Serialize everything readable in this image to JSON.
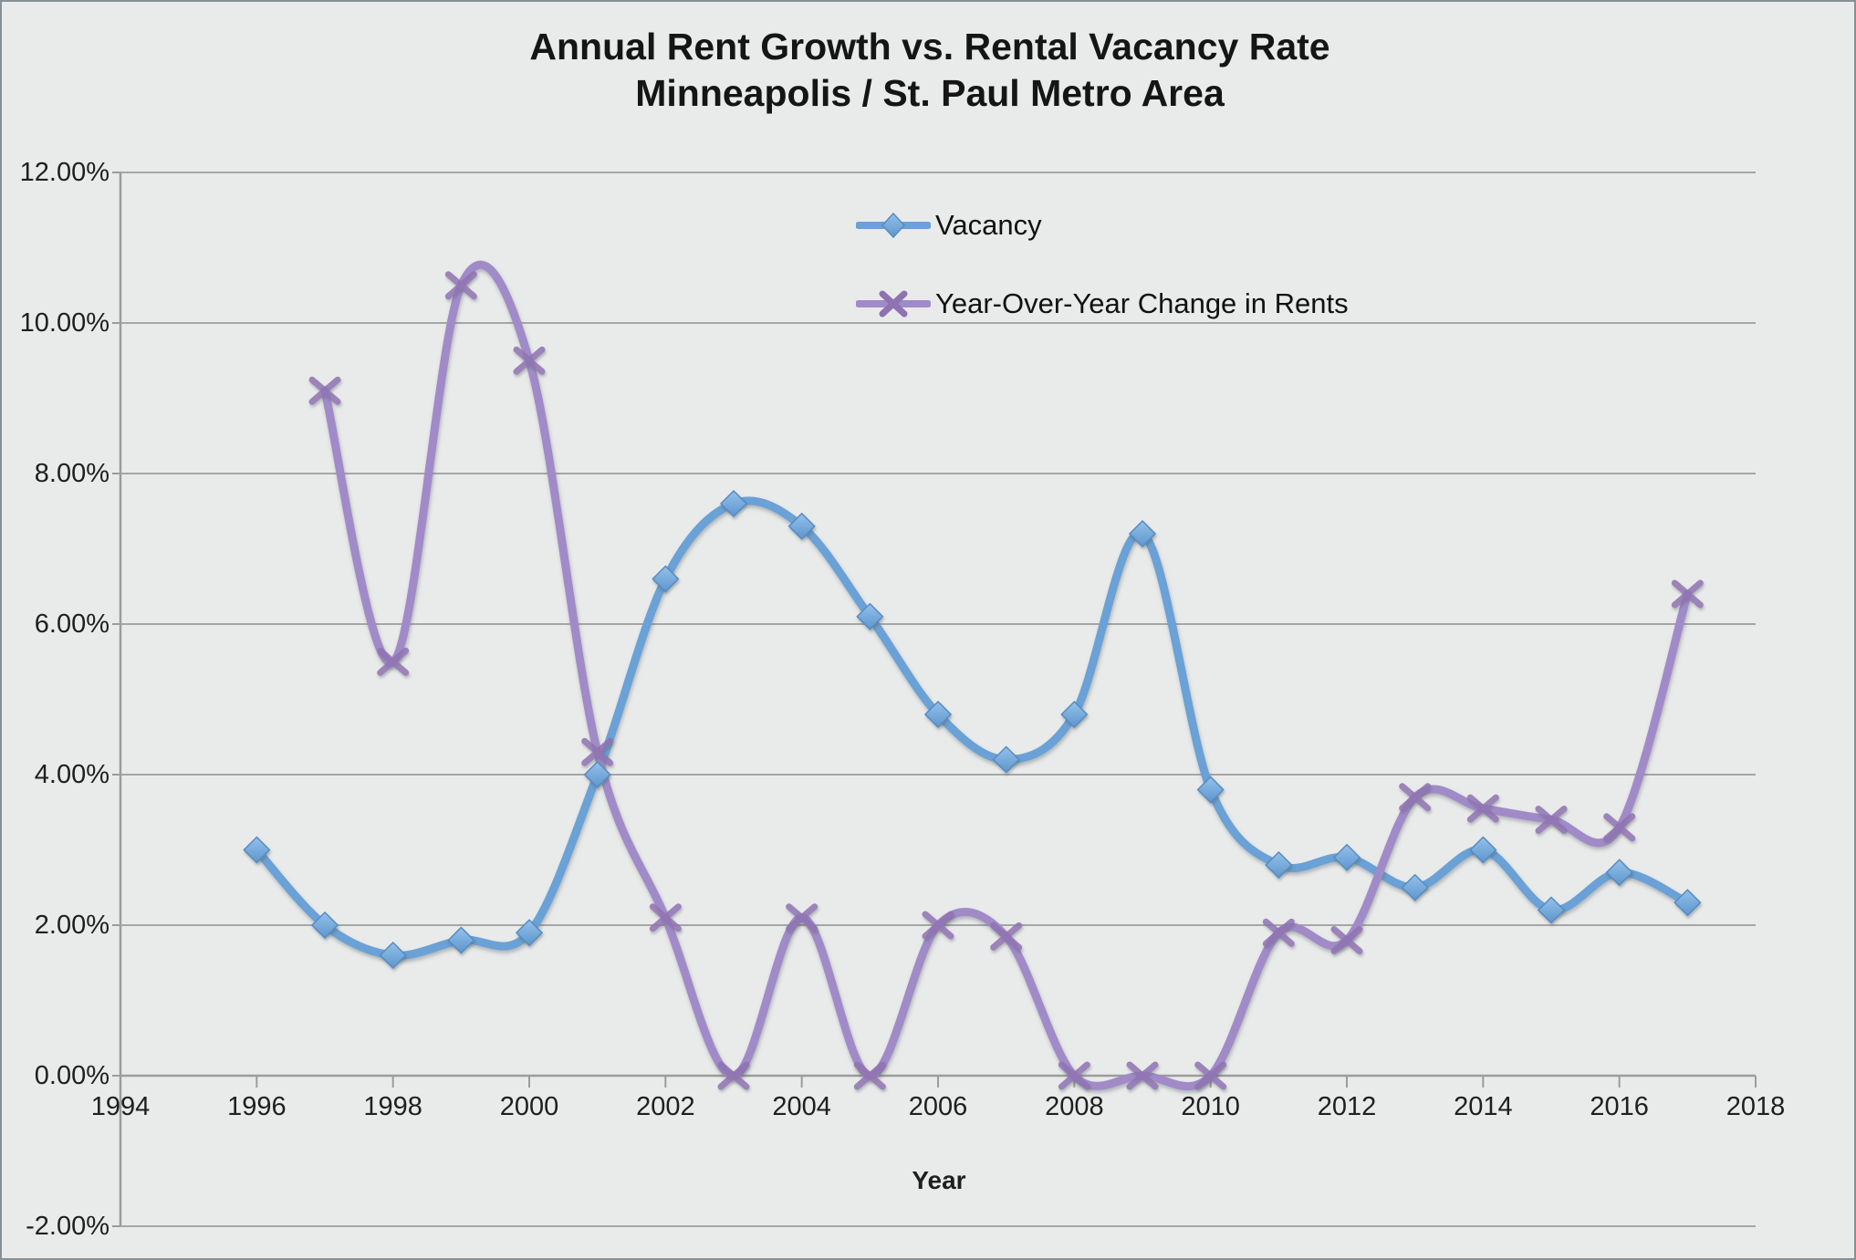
{
  "page": {
    "background": "#e9ebeb",
    "border_color": "#879095",
    "gridline_color": "#a6a6a6",
    "text_color": "#1f1f1f"
  },
  "chart_data": {
    "type": "line",
    "title_line1": "Annual Rent Growth vs. Rental Vacancy Rate",
    "title_line2": "Minneapolis / St. Paul Metro Area",
    "xlabel": "Year",
    "ylabel": "",
    "xlim": [
      1994,
      2018
    ],
    "ylim": [
      -2,
      12
    ],
    "grid": true,
    "legend_position": "top-center-inside",
    "x_ticks": [
      1994,
      1996,
      1998,
      2000,
      2002,
      2004,
      2006,
      2008,
      2010,
      2012,
      2014,
      2016,
      2018
    ],
    "y_ticks": [
      {
        "value": 12,
        "label": "12.00%"
      },
      {
        "value": 10,
        "label": "10.00%"
      },
      {
        "value": 8,
        "label": "8.00%"
      },
      {
        "value": 6,
        "label": "6.00%"
      },
      {
        "value": 4,
        "label": "4.00%"
      },
      {
        "value": 2,
        "label": "2.00%"
      },
      {
        "value": 0,
        "label": "0.00%"
      },
      {
        "value": -2,
        "label": "-2.00%"
      }
    ],
    "series": [
      {
        "name": "Vacancy",
        "color": "#6ba1d6",
        "marker": "diamond",
        "marker_color": "#77ade0",
        "smooth": true,
        "x": [
          1996,
          1997,
          1998,
          1999,
          2000,
          2001,
          2002,
          2003,
          2004,
          2005,
          2006,
          2007,
          2008,
          2009,
          2010,
          2011,
          2012,
          2013,
          2014,
          2015,
          2016,
          2017
        ],
        "values": [
          3.0,
          2.0,
          1.6,
          1.8,
          1.9,
          4.0,
          6.6,
          7.6,
          7.3,
          6.1,
          4.8,
          4.2,
          4.8,
          7.2,
          3.8,
          2.8,
          2.9,
          2.5,
          3.0,
          2.2,
          2.7,
          2.3
        ]
      },
      {
        "name": "Year-Over-Year Change in Rents",
        "color": "#a08bc8",
        "marker": "x",
        "marker_color": "#8f72b2",
        "smooth": true,
        "x": [
          1997,
          1998,
          1999,
          2000,
          2001,
          2002,
          2003,
          2004,
          2005,
          2006,
          2007,
          2008,
          2009,
          2010,
          2011,
          2012,
          2013,
          2014,
          2015,
          2016,
          2017
        ],
        "values": [
          9.1,
          5.5,
          10.5,
          9.5,
          4.3,
          2.1,
          0.0,
          2.1,
          0.0,
          2.0,
          1.85,
          0.0,
          0.0,
          0.0,
          1.9,
          1.8,
          3.7,
          3.55,
          3.4,
          3.3,
          6.4
        ]
      }
    ]
  }
}
